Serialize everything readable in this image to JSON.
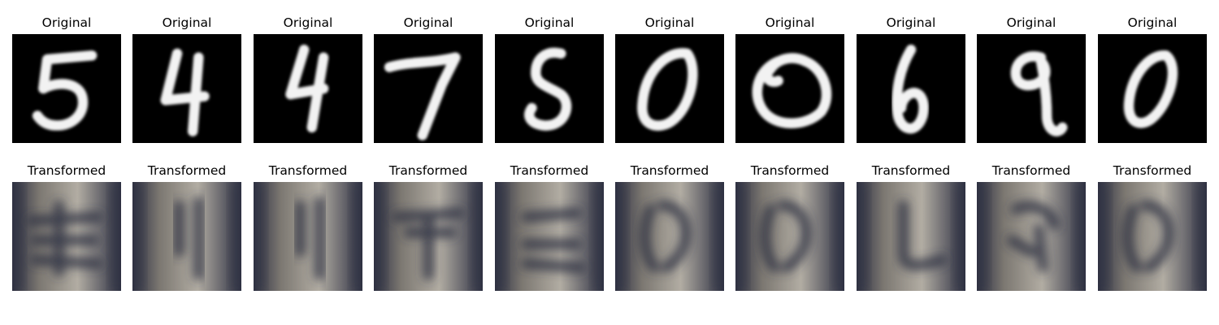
{
  "figure": {
    "rows": [
      {
        "name": "original",
        "caption": "Original",
        "tiles": [
          {
            "digit": "5",
            "icon": "digit-5-icon"
          },
          {
            "digit": "4",
            "icon": "digit-4-icon"
          },
          {
            "digit": "4",
            "icon": "digit-4-icon"
          },
          {
            "digit": "7",
            "icon": "digit-7-icon"
          },
          {
            "digit": "5",
            "icon": "digit-5-icon"
          },
          {
            "digit": "0",
            "icon": "digit-0-icon"
          },
          {
            "digit": "0",
            "icon": "digit-0-icon"
          },
          {
            "digit": "6",
            "icon": "digit-6-icon"
          },
          {
            "digit": "9",
            "icon": "digit-9-icon"
          },
          {
            "digit": "0",
            "icon": "digit-0-icon"
          }
        ]
      },
      {
        "name": "transformed",
        "caption": "Transformed",
        "tiles": [
          {
            "digit": "5",
            "icon": "blurry-digit-icon"
          },
          {
            "digit": "4",
            "icon": "blurry-digit-icon"
          },
          {
            "digit": "4",
            "icon": "blurry-digit-icon"
          },
          {
            "digit": "7",
            "icon": "blurry-digit-icon"
          },
          {
            "digit": "5",
            "icon": "blurry-digit-icon"
          },
          {
            "digit": "0",
            "icon": "blurry-digit-icon"
          },
          {
            "digit": "0",
            "icon": "blurry-digit-icon"
          },
          {
            "digit": "6",
            "icon": "blurry-digit-icon"
          },
          {
            "digit": "9",
            "icon": "blurry-digit-icon"
          },
          {
            "digit": "0",
            "icon": "blurry-digit-icon"
          }
        ]
      }
    ],
    "colors": {
      "original_background": "#000000",
      "original_stroke": "#f2f2f2",
      "transformed_base": "#8a857a",
      "transformed_dark": "#2e3142",
      "transformed_light": "#c9c3b4"
    }
  }
}
